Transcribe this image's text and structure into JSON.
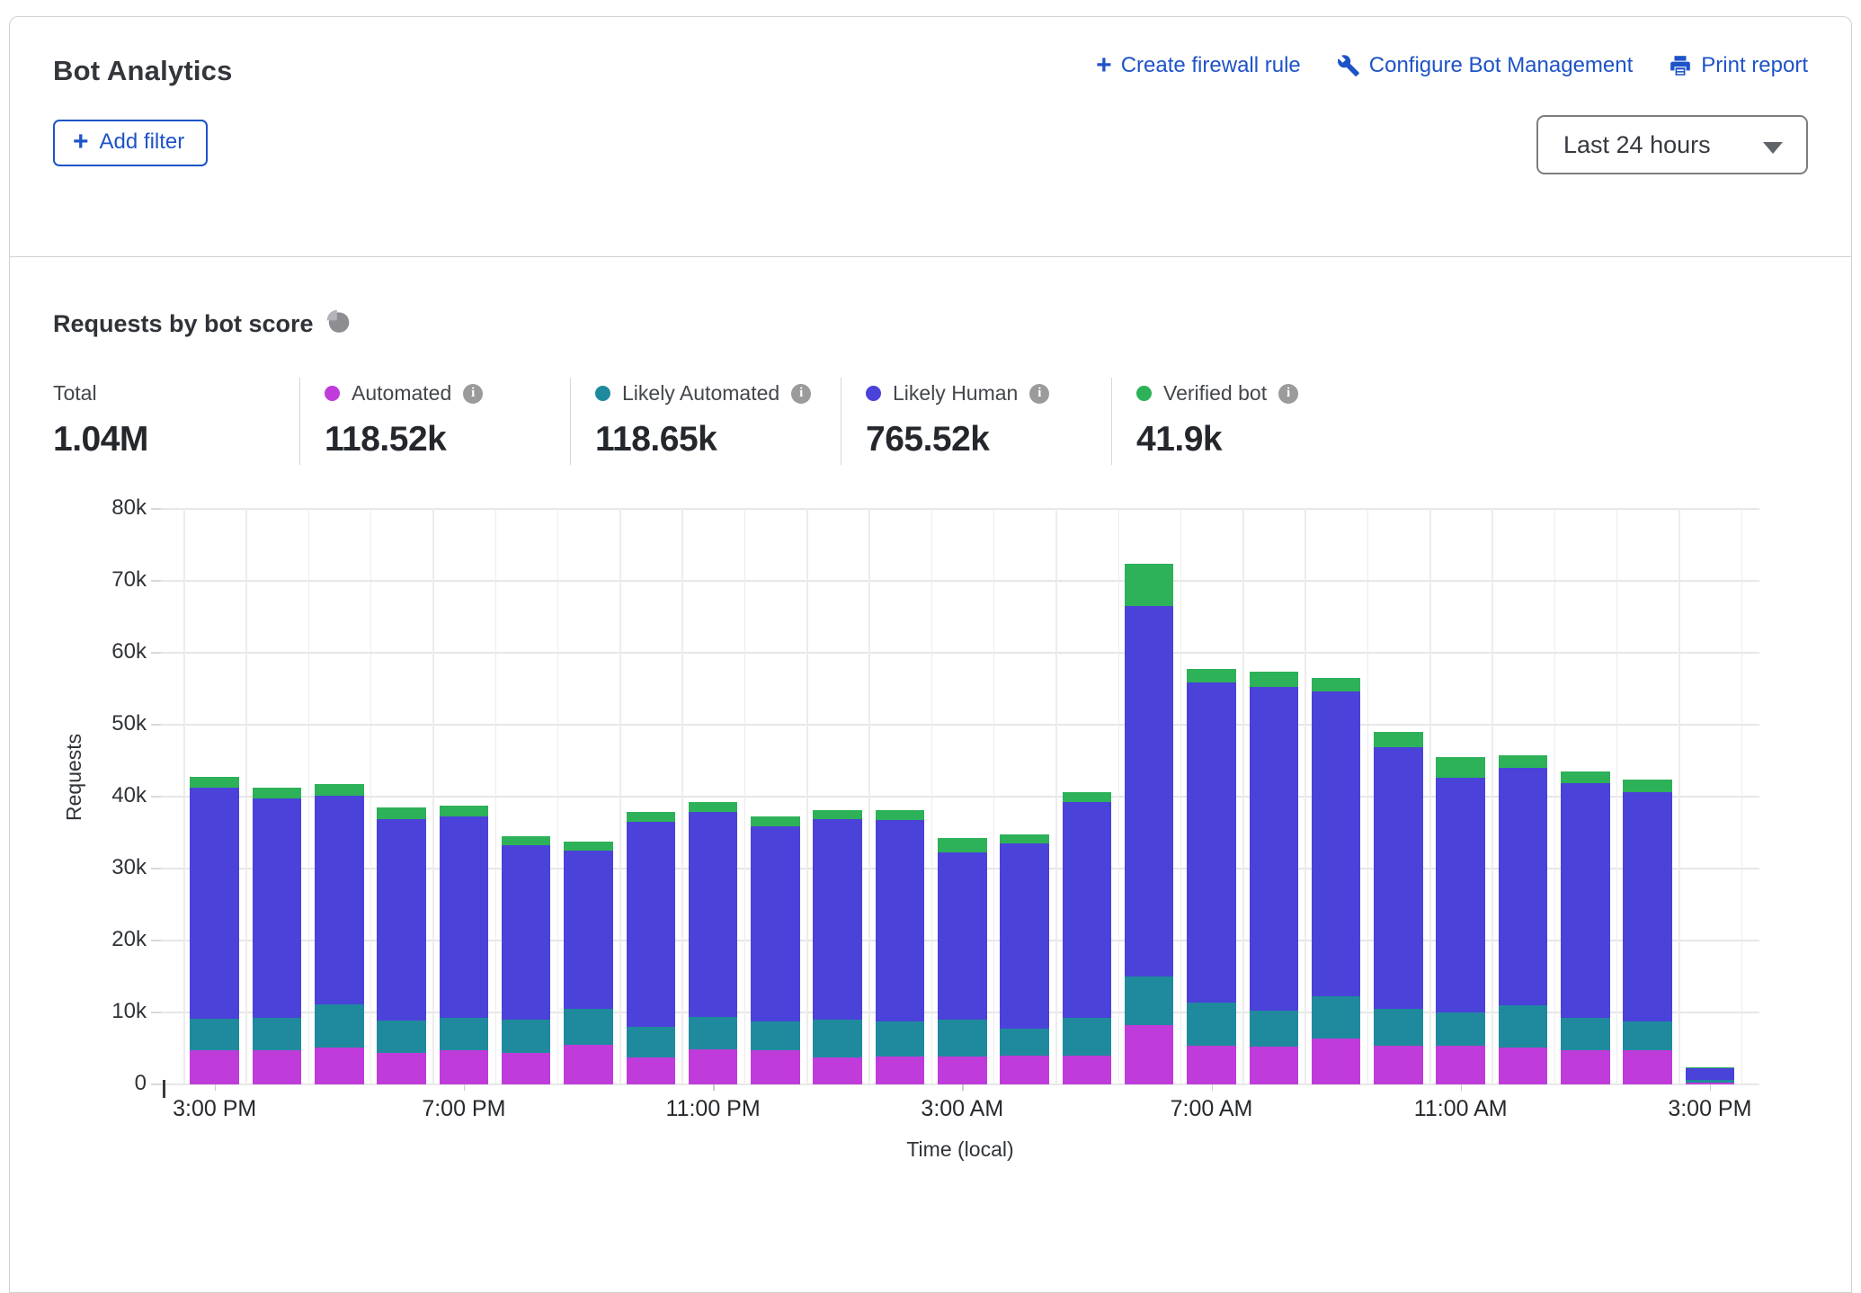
{
  "header": {
    "title": "Bot Analytics",
    "actions": [
      {
        "label": "Create firewall rule",
        "icon": "plus-icon"
      },
      {
        "label": "Configure Bot Management",
        "icon": "wrench-icon"
      },
      {
        "label": "Print report",
        "icon": "printer-icon"
      }
    ],
    "add_filter_label": "Add filter",
    "time_range": "Last 24 hours"
  },
  "section": {
    "title": "Requests by bot score"
  },
  "stats": [
    {
      "label": "Total",
      "value": "1.04M",
      "color": null
    },
    {
      "label": "Automated",
      "value": "118.52k",
      "color": "#bf3cdb"
    },
    {
      "label": "Likely Automated",
      "value": "118.65k",
      "color": "#1f8a9d"
    },
    {
      "label": "Likely Human",
      "value": "765.52k",
      "color": "#4a42d9"
    },
    {
      "label": "Verified bot",
      "value": "41.9k",
      "color": "#2db159"
    }
  ],
  "chart_data": {
    "type": "bar",
    "stacked": true,
    "title": "Requests by bot score",
    "xlabel": "Time (local)",
    "ylabel": "Requests",
    "ylim": [
      0,
      80000
    ],
    "grid": true,
    "legend_position": "top",
    "ytick_labels": [
      "0",
      "10k",
      "20k",
      "30k",
      "40k",
      "50k",
      "60k",
      "70k",
      "80k"
    ],
    "categories": [
      "3:00 PM",
      "4:00 PM",
      "5:00 PM",
      "6:00 PM",
      "7:00 PM",
      "8:00 PM",
      "9:00 PM",
      "10:00 PM",
      "11:00 PM",
      "12:00 AM",
      "1:00 AM",
      "2:00 AM",
      "3:00 AM",
      "4:00 AM",
      "5:00 AM",
      "6:00 AM",
      "7:00 AM",
      "8:00 AM",
      "9:00 AM",
      "10:00 AM",
      "11:00 AM",
      "12:00 PM",
      "1:00 PM",
      "2:00 PM",
      "3:00 PM"
    ],
    "x_ticks": [
      {
        "index": 0,
        "label": "3:00 PM"
      },
      {
        "index": 4,
        "label": "7:00 PM"
      },
      {
        "index": 8,
        "label": "11:00 PM"
      },
      {
        "index": 12,
        "label": "3:00 AM"
      },
      {
        "index": 16,
        "label": "7:00 AM"
      },
      {
        "index": 20,
        "label": "11:00 AM"
      },
      {
        "index": 24,
        "label": "3:00 PM"
      }
    ],
    "series": [
      {
        "name": "Automated",
        "color": "#bf3cdb",
        "values": [
          4700,
          4800,
          5100,
          4400,
          4750,
          4400,
          5500,
          3700,
          4900,
          4750,
          3800,
          3900,
          3900,
          4000,
          4000,
          8300,
          5400,
          5250,
          6400,
          5400,
          5350,
          5100,
          4800,
          4700,
          300
        ]
      },
      {
        "name": "Likely Automated",
        "color": "#1f8a9d",
        "values": [
          4400,
          4400,
          6000,
          4500,
          4450,
          4600,
          5000,
          4300,
          4500,
          4000,
          5200,
          4900,
          5100,
          3700,
          5200,
          6700,
          6000,
          5000,
          5800,
          5100,
          4650,
          5900,
          4450,
          4050,
          300
        ]
      },
      {
        "name": "Likely Human",
        "color": "#4a42d9",
        "values": [
          32200,
          30600,
          29000,
          28000,
          28100,
          24300,
          22000,
          28500,
          28500,
          27150,
          27900,
          28000,
          23300,
          25800,
          30000,
          51500,
          44500,
          45050,
          42400,
          36400,
          32600,
          33000,
          32650,
          31850,
          1700
        ]
      },
      {
        "name": "Verified bot",
        "color": "#2db159",
        "values": [
          1400,
          1400,
          1700,
          1600,
          1500,
          1200,
          1200,
          1400,
          1400,
          1400,
          1200,
          1300,
          1900,
          1300,
          1400,
          5900,
          1800,
          2100,
          1900,
          2100,
          2900,
          1700,
          1600,
          1800,
          100
        ]
      }
    ]
  }
}
